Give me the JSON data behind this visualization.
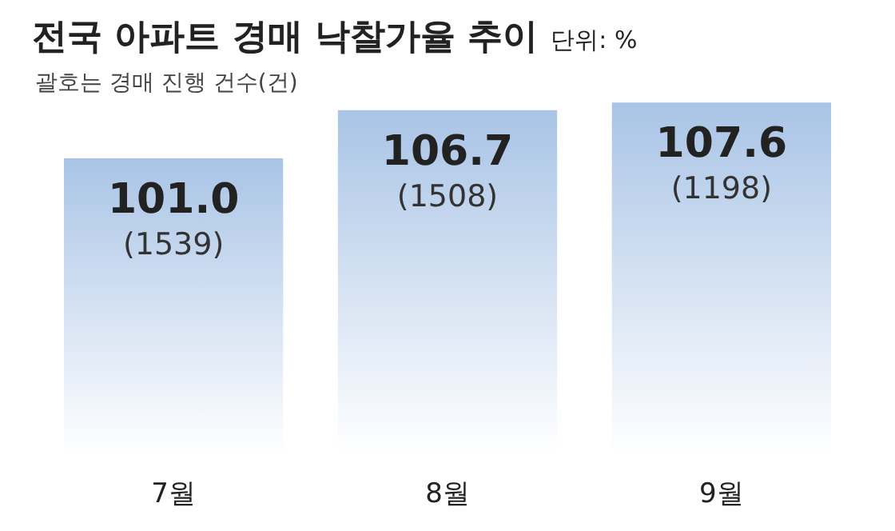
{
  "chart_data": {
    "type": "bar",
    "title": "전국 아파트 경매 낙찰가율 추이",
    "subtitle": "괄호는 경매 진행 건수(건)",
    "annotations": [
      "단위: %",
      {
        "text": "(1539)",
        "x": "7월",
        "y": 101.0
      },
      {
        "text": "(1508)",
        "x": "8월",
        "y": 106.7
      },
      {
        "text": "(1198)",
        "x": "9월",
        "y": 107.6
      }
    ],
    "categories": [
      "7월",
      "8월",
      "9월"
    ],
    "values": [
      101.0,
      106.7,
      107.6
    ],
    "color": "#a9c4e6",
    "ylim": [
      66,
      108
    ],
    "value_labels": [
      "101.0",
      "106.7",
      "107.6"
    ]
  }
}
